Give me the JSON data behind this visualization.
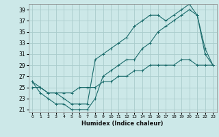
{
  "title": "",
  "xlabel": "Humidex (Indice chaleur)",
  "bg_color": "#cce8e8",
  "grid_color": "#aacccc",
  "line_color": "#1a6b6b",
  "xlim": [
    -0.5,
    23.5
  ],
  "ylim": [
    20.5,
    40
  ],
  "xticks": [
    0,
    1,
    2,
    3,
    4,
    5,
    6,
    7,
    8,
    9,
    10,
    11,
    12,
    13,
    14,
    15,
    16,
    17,
    18,
    19,
    20,
    21,
    22,
    23
  ],
  "yticks": [
    21,
    23,
    25,
    27,
    29,
    31,
    33,
    35,
    37,
    39
  ],
  "line1_x": [
    0,
    1,
    2,
    3,
    4,
    5,
    6,
    7,
    8,
    9,
    10,
    11,
    12,
    13,
    14,
    15,
    16,
    17,
    18,
    19,
    20,
    21,
    22,
    23
  ],
  "line1_y": [
    26,
    24,
    23,
    22,
    22,
    21,
    21,
    21,
    23,
    27,
    28,
    29,
    30,
    30,
    32,
    33,
    35,
    36,
    37,
    38,
    39,
    38,
    31,
    29
  ],
  "line2_x": [
    0,
    1,
    2,
    3,
    4,
    5,
    6,
    7,
    8,
    9,
    10,
    11,
    12,
    13,
    14,
    15,
    16,
    17,
    18,
    19,
    20,
    21,
    22,
    23
  ],
  "line2_y": [
    26,
    25,
    24,
    24,
    23,
    22,
    22,
    22,
    30,
    31,
    32,
    33,
    34,
    36,
    37,
    38,
    38,
    37,
    38,
    39,
    40,
    38,
    32,
    29
  ],
  "line3_x": [
    0,
    1,
    2,
    3,
    4,
    5,
    6,
    7,
    8,
    9,
    10,
    11,
    12,
    13,
    14,
    15,
    16,
    17,
    18,
    19,
    20,
    21,
    22,
    23
  ],
  "line3_y": [
    25,
    25,
    24,
    24,
    24,
    24,
    25,
    25,
    25,
    26,
    26,
    27,
    27,
    28,
    28,
    29,
    29,
    29,
    29,
    30,
    30,
    29,
    29,
    29
  ]
}
